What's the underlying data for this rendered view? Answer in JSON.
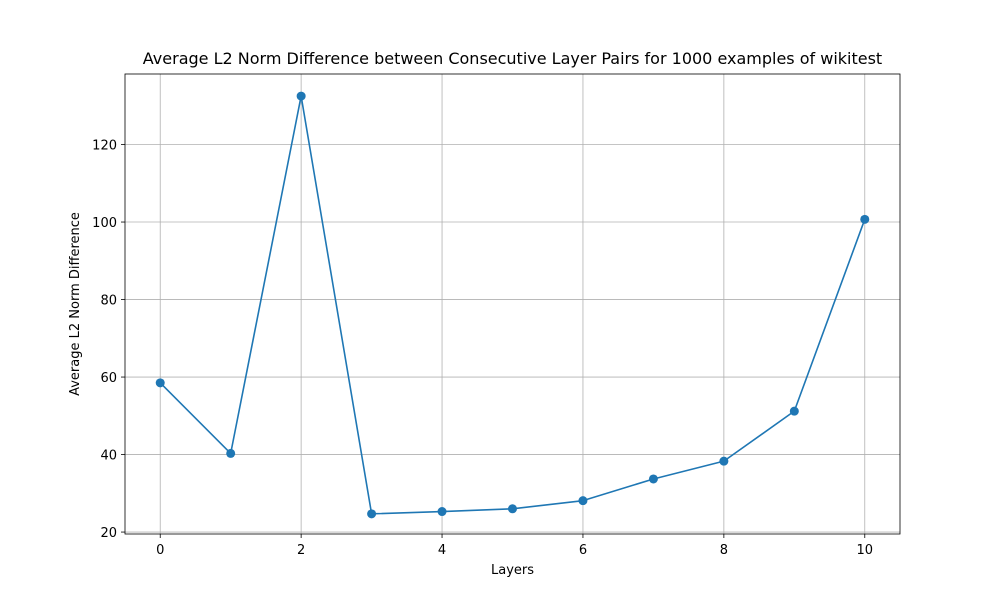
{
  "chart_data": {
    "type": "line",
    "title": "Average L2 Norm Difference between Consecutive Layer Pairs for 1000 examples of wikitest",
    "xlabel": "Layers",
    "ylabel": "Average L2 Norm Difference",
    "x": [
      0,
      1,
      2,
      3,
      4,
      5,
      6,
      7,
      8,
      9,
      10
    ],
    "series": [
      {
        "values": [
          58.5,
          40.3,
          132.5,
          24.7,
          25.3,
          26.0,
          28.1,
          33.7,
          38.3,
          51.2,
          100.7
        ],
        "color": "#1f77b4",
        "marker": "circle"
      }
    ],
    "xlim": [
      -0.5,
      10.5
    ],
    "ylim": [
      19.5,
      138.2
    ],
    "xticks": [
      0,
      2,
      4,
      6,
      8,
      10
    ],
    "yticks": [
      20,
      40,
      60,
      80,
      100,
      120
    ],
    "grid": true
  }
}
